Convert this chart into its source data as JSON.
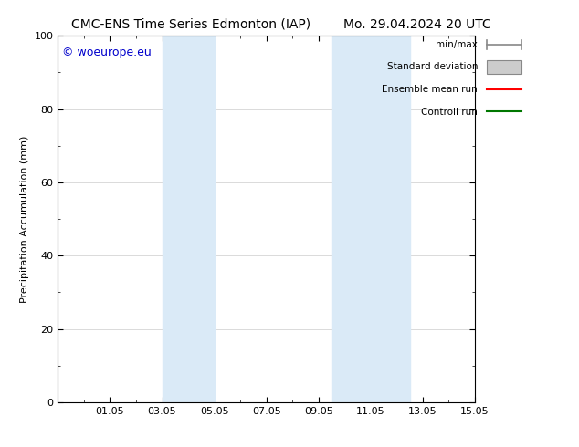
{
  "title_left": "CMC-ENS Time Series Edmonton (IAP)",
  "title_right": "Mo. 29.04.2024 20 UTC",
  "ylabel": "Precipitation Accumulation (mm)",
  "ylim": [
    0,
    100
  ],
  "xlim": [
    0,
    16
  ],
  "xtick_labels": [
    "01.05",
    "03.05",
    "05.05",
    "07.05",
    "09.05",
    "11.05",
    "13.05",
    "15.05"
  ],
  "xtick_positions": [
    2,
    4,
    6,
    8,
    10,
    12,
    14,
    16
  ],
  "shaded_bands": [
    {
      "x_start": 4.0,
      "x_end": 5.0,
      "color": "#daeaf7"
    },
    {
      "x_start": 5.0,
      "x_end": 6.0,
      "color": "#daeaf7"
    },
    {
      "x_start": 10.5,
      "x_end": 11.5,
      "color": "#daeaf7"
    },
    {
      "x_start": 11.5,
      "x_end": 13.5,
      "color": "#daeaf7"
    }
  ],
  "watermark_text": "© woeurope.eu",
  "watermark_color": "#0000cc",
  "watermark_fontsize": 9,
  "legend_labels": [
    "min/max",
    "Standard deviation",
    "Ensemble mean run",
    "Controll run"
  ],
  "legend_colors_line": [
    "#888888",
    "#bbbbbb",
    "#ff0000",
    "#007700"
  ],
  "background_color": "#ffffff",
  "plot_bg_color": "#ffffff",
  "grid_color": "#cccccc",
  "title_fontsize": 10,
  "axis_fontsize": 8,
  "tick_fontsize": 8,
  "legend_fontsize": 7.5
}
